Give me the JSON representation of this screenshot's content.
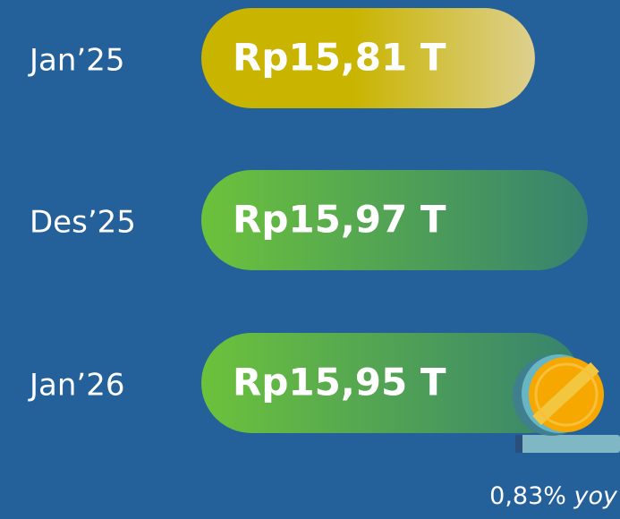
{
  "chart_data": {
    "type": "bar",
    "orientation": "horizontal",
    "categories": [
      "Jan’25",
      "Des’25",
      "Jan’26"
    ],
    "values": [
      15.81,
      15.97,
      15.95
    ],
    "value_labels": [
      "Rp15,81 T",
      "Rp15,97 T",
      "Rp15,95 T"
    ],
    "colors": [
      "#c9b400",
      "#6cc23b",
      "#6cc23b"
    ],
    "xlim": [
      14.8,
      16.1
    ],
    "annotation": {
      "value": "0,83%",
      "unit": "yoy"
    }
  }
}
